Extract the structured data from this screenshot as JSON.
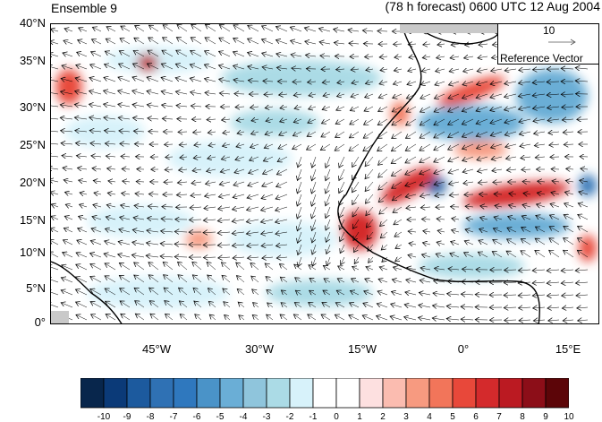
{
  "title_left": "Ensemble 9",
  "title_right": "(78 h forecast) 0600 UTC 12 Aug 2004",
  "lat_labels": [
    "40°N",
    "35°N",
    "30°N",
    "25°N",
    "20°N",
    "15°N",
    "10°N",
    "5°N",
    "0°"
  ],
  "lon_labels": [
    "45°W",
    "30°W",
    "15°W",
    "0°",
    "15°E"
  ],
  "reference_vector": {
    "magnitude": "10",
    "label": "Reference Vector"
  },
  "colorbar": {
    "labels": [
      "-10",
      "-9",
      "-8",
      "-7",
      "-6",
      "-5",
      "-4",
      "-3",
      "-2",
      "-1",
      "0",
      "1",
      "2",
      "3",
      "4",
      "5",
      "6",
      "7",
      "8",
      "9",
      "10"
    ],
    "colors": [
      "#08264c",
      "#0b3a78",
      "#1c5a9e",
      "#2f71b4",
      "#2f78be",
      "#4a93c8",
      "#6aaed6",
      "#8fc5dc",
      "#abdbe6",
      "#d7f2fa",
      "#ffffff",
      "#ffffff",
      "#fde0e0",
      "#fbbcb0",
      "#f79a80",
      "#f2755a",
      "#e8483a",
      "#d42a2c",
      "#bb1a22",
      "#8c0e18",
      "#5c0508"
    ]
  },
  "colors": {
    "land": "#ffffff",
    "coast": "#000000",
    "grid_missing": "#c9c9c9"
  }
}
